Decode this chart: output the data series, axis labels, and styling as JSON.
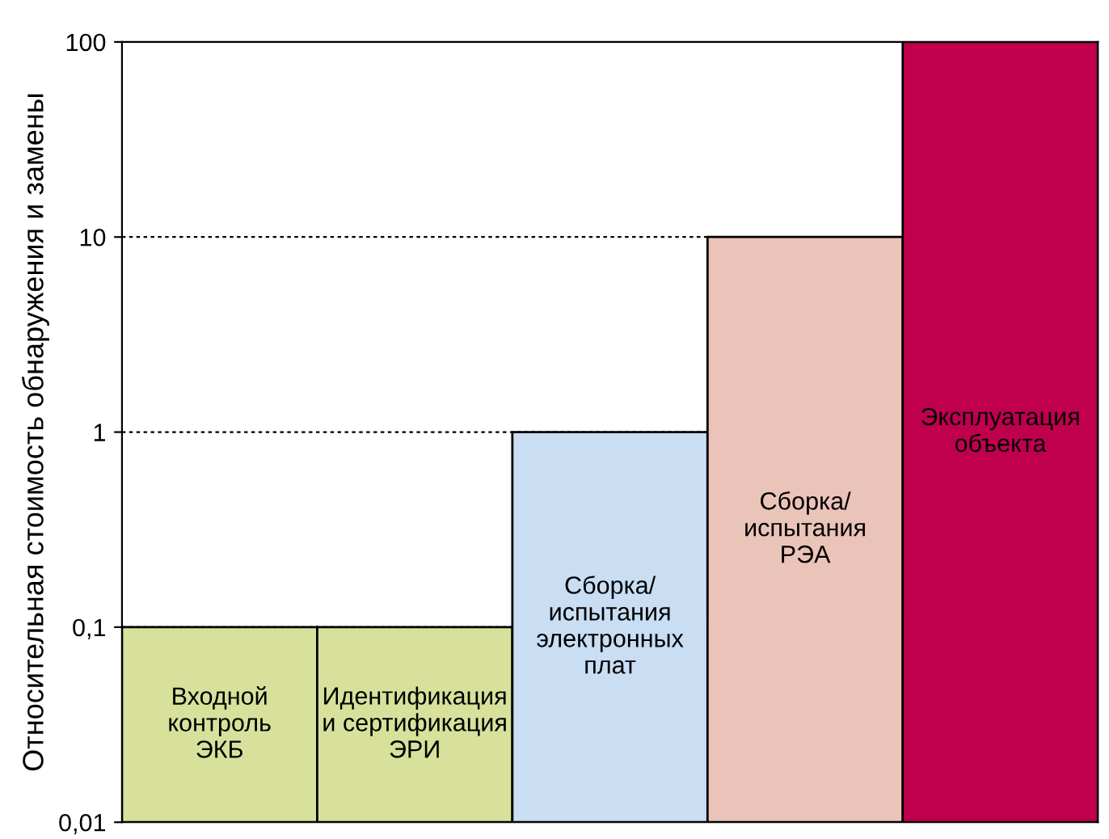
{
  "chart_data": {
    "type": "bar",
    "ylabel": "Относительная стоимость обнаружения и замены",
    "categories": [
      "Входной\nконтроль\nЭКБ",
      "Идентификация\nи сертификация\nЭРИ",
      "Сборка/\nиспытания\nэлектронных\nплат",
      "Сборка/\nиспытания\nРЭА",
      "Эксплуатация\nобъекта"
    ],
    "values": [
      0.1,
      0.1,
      1,
      10,
      100
    ],
    "colors": [
      "#d7e19b",
      "#d7e19b",
      "#c9ddf3",
      "#ebc4b9",
      "#c0004d"
    ],
    "log": "y",
    "ylim": [
      0.01,
      100
    ],
    "yticks": [
      {
        "value": 0.01,
        "label": "0,01"
      },
      {
        "value": 0.1,
        "label": "0,1"
      },
      1,
      10,
      100
    ],
    "grid": "y",
    "tick_labels": "y",
    "legend": false
  }
}
